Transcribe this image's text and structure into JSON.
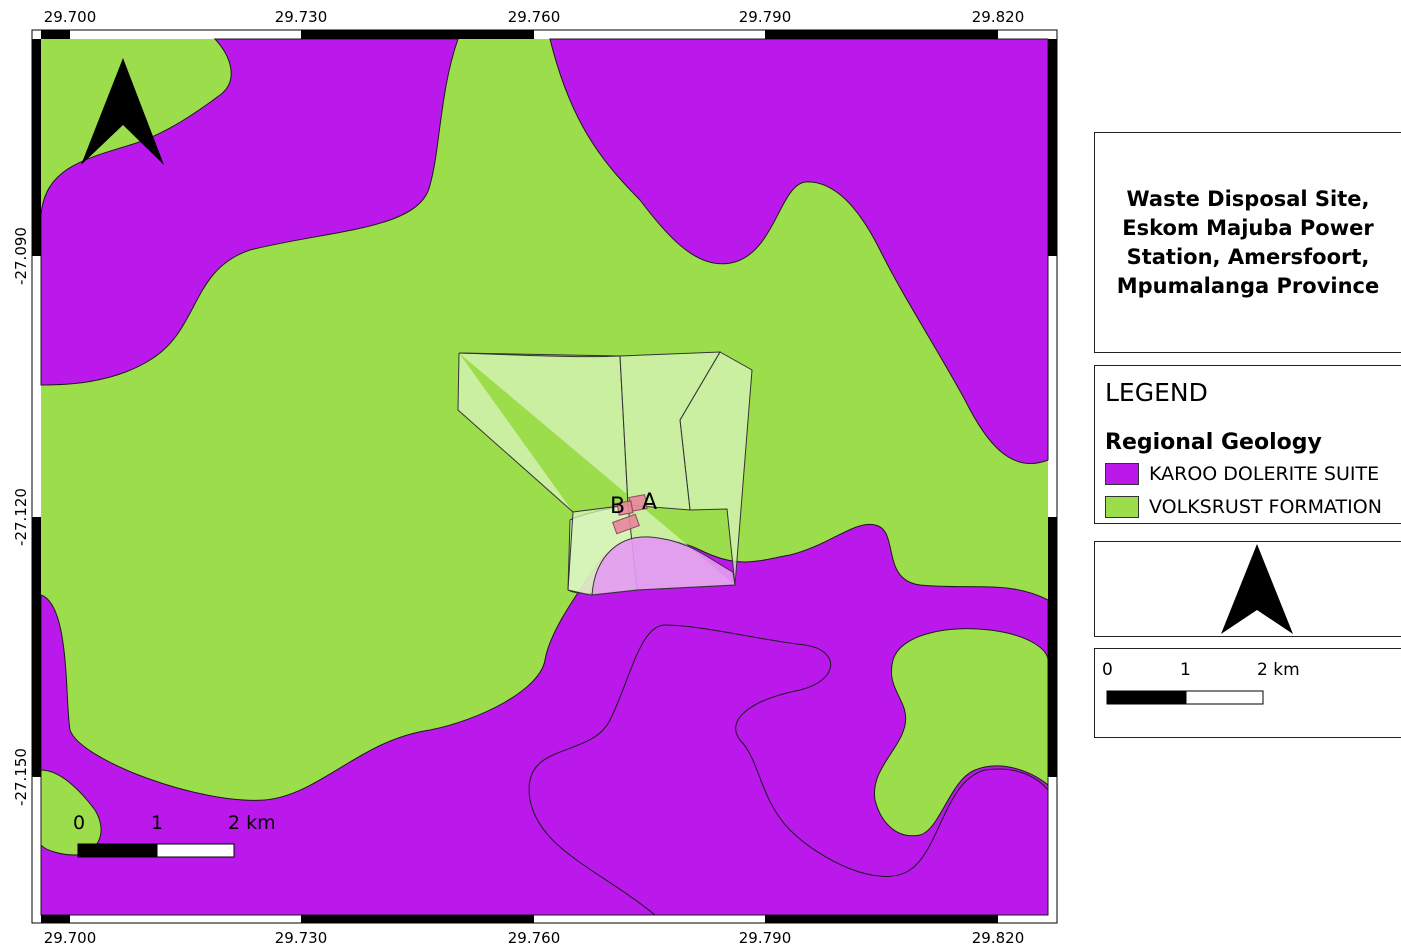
{
  "map": {
    "longitude_ticks": [
      "29.700",
      "29.730",
      "29.760",
      "29.790",
      "29.820"
    ],
    "latitude_ticks": [
      "-27.090",
      "-27.120",
      "-27.150"
    ],
    "site_labels": [
      "B",
      "A"
    ],
    "colors": {
      "karoo_dolerite": "#bb18ec",
      "volksrust": "#9cdd4b",
      "site_area": "#dcf5c0",
      "site_markers": "#e8869c"
    },
    "scalebar": {
      "labels": [
        "0",
        "1",
        "2 km"
      ]
    },
    "north_arrow_icon": "north-arrow-icon"
  },
  "title_panel": {
    "title": "Waste Disposal Site, Eskom Majuba Power Station, Amersfoort, Mpumalanga Province"
  },
  "legend": {
    "heading": "LEGEND",
    "group": "Regional Geology",
    "items": [
      {
        "label": "KAROO DOLERITE SUITE",
        "color": "#bb18ec"
      },
      {
        "label": "VOLKSRUST FORMATION",
        "color": "#9cdd4b"
      }
    ]
  },
  "scale_panel": {
    "labels": [
      "0",
      "1",
      "2 km"
    ]
  }
}
